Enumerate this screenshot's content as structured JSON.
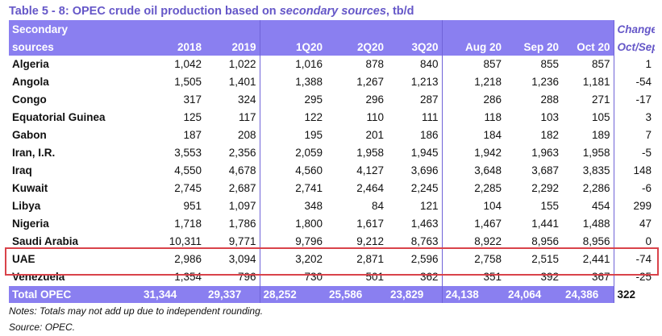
{
  "title": {
    "prefix": "Table 5 - 8: OPEC crude oil production based on ",
    "emph": "secondary sources",
    "suffix": ", tb/d"
  },
  "header": {
    "row_label_line1": "Secondary",
    "row_label_line2": "sources",
    "change_line1": "Change",
    "change_line2": "Oct/Sep",
    "columns": [
      "2018",
      "2019",
      "1Q20",
      "2Q20",
      "3Q20",
      "Aug 20",
      "Sep 20",
      "Oct 20"
    ]
  },
  "rows": [
    {
      "name": "Algeria",
      "values": [
        "1,042",
        "1,022",
        "1,016",
        "878",
        "840",
        "857",
        "855",
        "857"
      ],
      "change": "1"
    },
    {
      "name": "Angola",
      "values": [
        "1,505",
        "1,401",
        "1,388",
        "1,267",
        "1,213",
        "1,218",
        "1,236",
        "1,181"
      ],
      "change": "-54"
    },
    {
      "name": "Congo",
      "values": [
        "317",
        "324",
        "295",
        "296",
        "287",
        "286",
        "288",
        "271"
      ],
      "change": "-17"
    },
    {
      "name": "Equatorial Guinea",
      "values": [
        "125",
        "117",
        "122",
        "110",
        "111",
        "118",
        "103",
        "105"
      ],
      "change": "3"
    },
    {
      "name": "Gabon",
      "values": [
        "187",
        "208",
        "195",
        "201",
        "186",
        "184",
        "182",
        "189"
      ],
      "change": "7"
    },
    {
      "name": "Iran, I.R.",
      "values": [
        "3,553",
        "2,356",
        "2,059",
        "1,958",
        "1,945",
        "1,942",
        "1,963",
        "1,958"
      ],
      "change": "-5"
    },
    {
      "name": "Iraq",
      "values": [
        "4,550",
        "4,678",
        "4,560",
        "4,127",
        "3,696",
        "3,648",
        "3,687",
        "3,835"
      ],
      "change": "148"
    },
    {
      "name": "Kuwait",
      "values": [
        "2,745",
        "2,687",
        "2,741",
        "2,464",
        "2,245",
        "2,285",
        "2,292",
        "2,286"
      ],
      "change": "-6"
    },
    {
      "name": "Libya",
      "values": [
        "951",
        "1,097",
        "348",
        "84",
        "121",
        "104",
        "155",
        "454"
      ],
      "change": "299"
    },
    {
      "name": "Nigeria",
      "values": [
        "1,718",
        "1,786",
        "1,800",
        "1,617",
        "1,463",
        "1,467",
        "1,441",
        "1,488"
      ],
      "change": "47"
    },
    {
      "name": "Saudi Arabia",
      "values": [
        "10,311",
        "9,771",
        "9,796",
        "9,212",
        "8,763",
        "8,922",
        "8,956",
        "8,956"
      ],
      "change": "0"
    },
    {
      "name": "UAE",
      "values": [
        "2,986",
        "3,094",
        "3,202",
        "2,871",
        "2,596",
        "2,758",
        "2,515",
        "2,441"
      ],
      "change": "-74"
    },
    {
      "name": "Venezuela",
      "values": [
        "1,354",
        "796",
        "730",
        "501",
        "362",
        "351",
        "392",
        "367"
      ],
      "change": "-25"
    }
  ],
  "total": {
    "name": "Total  OPEC",
    "values": [
      "31,344",
      "29,337",
      "28,252",
      "25,586",
      "23,829",
      "24,138",
      "24,064",
      "24,386"
    ],
    "change": "322"
  },
  "notes": {
    "line1": "Notes: Totals may not add up due to independent rounding.",
    "line2": "Source: OPEC."
  },
  "colors": {
    "header_bg": "#8a7ff0",
    "title_text": "#6557c8",
    "highlight_border": "#d9434a"
  }
}
